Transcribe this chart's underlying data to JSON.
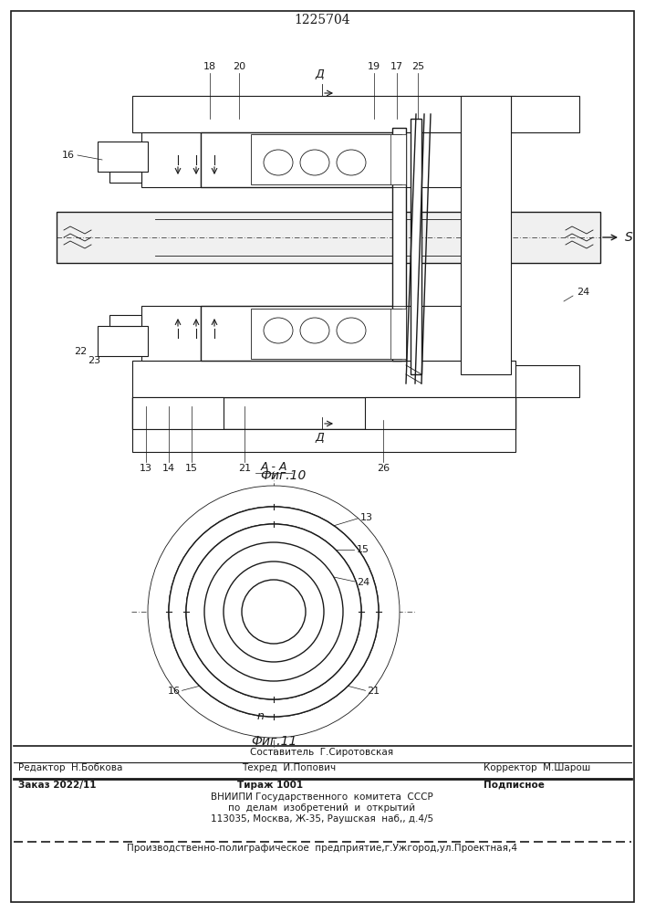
{
  "title": "1225704",
  "fig10_label": "Фиг.10",
  "fig11_label": "Фиг.11",
  "bg_color": "#ffffff",
  "line_color": "#1a1a1a",
  "footer_sostavitel": "Составитель  Г.Сиротовская",
  "footer_editor": "Редактор  Н.Бобкова",
  "footer_tekhred": "Техред  И.Попович",
  "footer_korrektor": "Корректор  М.Шарош",
  "footer_zakaz": "Заказ 2022/11",
  "footer_tirazh": "Тираж 1001",
  "footer_podpisnoe": "Подписное",
  "footer_vniip1": "ВНИИПИ Государственного  комитета  СССР",
  "footer_vniip2": "по  делам  изобретений  и  открытий",
  "footer_addr": "113035, Москва, Ж-35, Раушская  наб,, д.4/5",
  "footer_prod": "Производственно-полиграфическое  предприятие,г.Ужгород,ул.Проектная,4"
}
